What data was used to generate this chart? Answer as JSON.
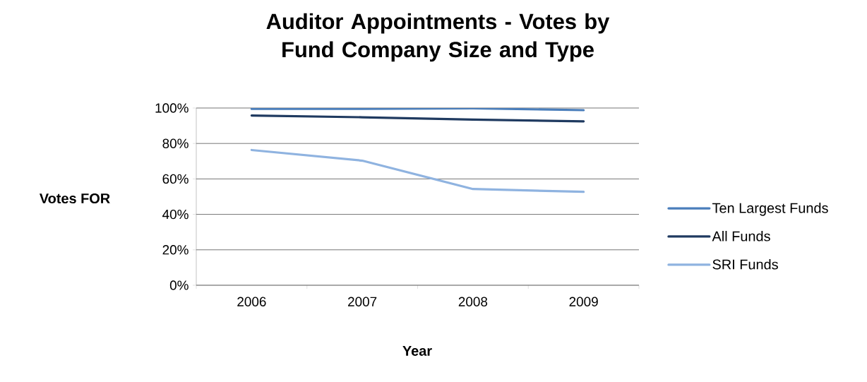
{
  "chart_data": {
    "type": "line",
    "title": "Auditor Appointments - Votes by Fund Company Size and Type",
    "xlabel": "Year",
    "ylabel": "Votes FOR",
    "categories": [
      "2006",
      "2007",
      "2008",
      "2009"
    ],
    "series": [
      {
        "name": "Ten Largest Funds",
        "color": "#4a7ebb",
        "values": [
          99.5,
          99.5,
          99.8,
          98.8
        ]
      },
      {
        "name": "All Funds",
        "color": "#1f3a60",
        "values": [
          95.8,
          94.8,
          93.5,
          92.5
        ]
      },
      {
        "name": "SRI Funds",
        "color": "#8fb3e0",
        "values": [
          76.3,
          70.3,
          54.3,
          52.7
        ]
      }
    ],
    "ylim": [
      0,
      100
    ],
    "yticks": [
      {
        "value": 0,
        "label": "0%"
      },
      {
        "value": 20,
        "label": "20%"
      },
      {
        "value": 40,
        "label": "40%"
      },
      {
        "value": 60,
        "label": "60%"
      },
      {
        "value": 80,
        "label": "80%"
      },
      {
        "value": 100,
        "label": "100%"
      }
    ],
    "grid": "y",
    "legend": "right"
  }
}
